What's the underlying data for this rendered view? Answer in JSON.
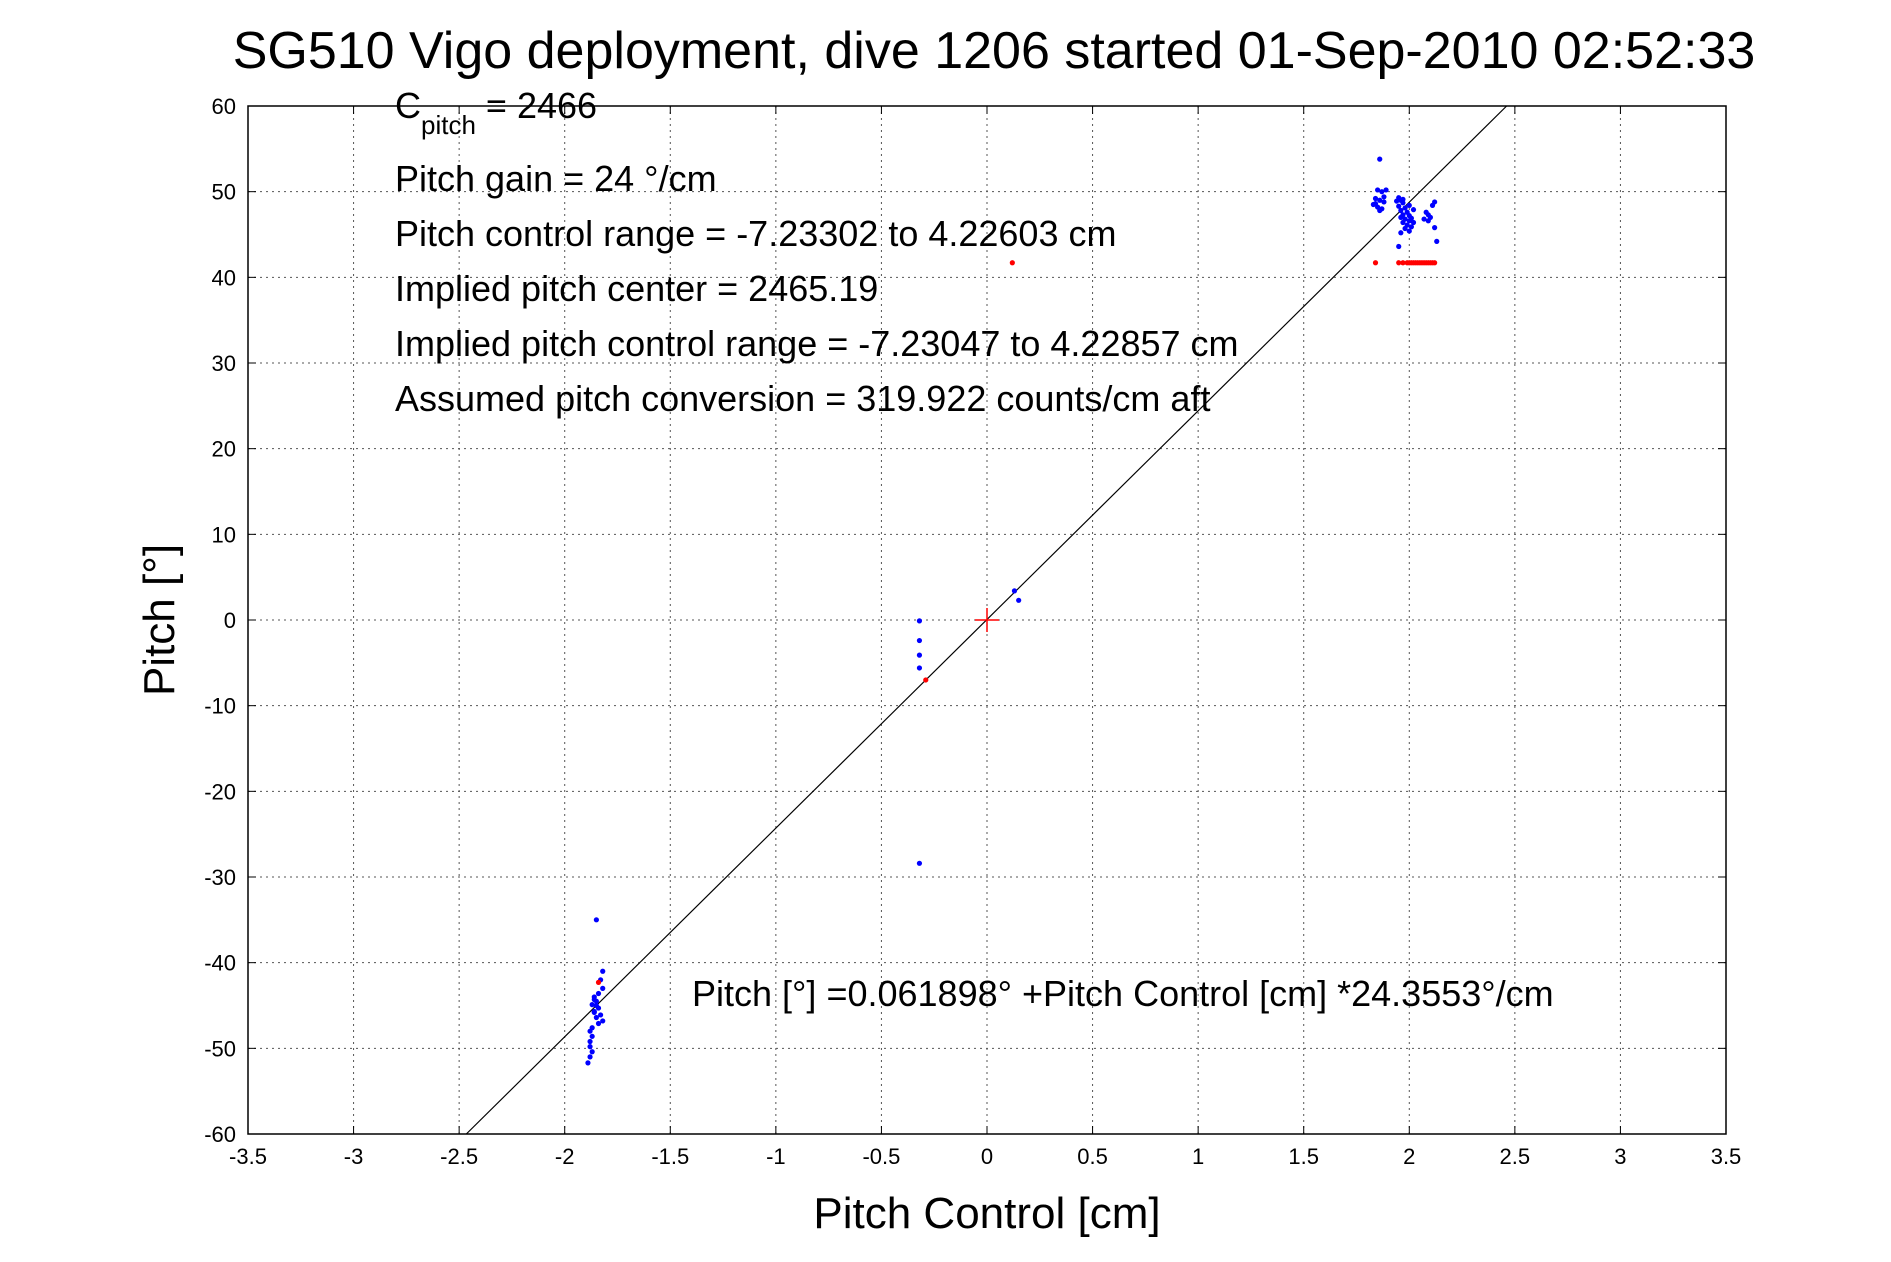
{
  "chart_data": {
    "type": "scatter",
    "title": "SG510 Vigo deployment, dive 1206 started 01-Sep-2010 02:52:33",
    "xlabel": "Pitch Control [cm]",
    "ylabel": "Pitch [°]",
    "xlim": [
      -3.5,
      3.5
    ],
    "ylim": [
      -60,
      60
    ],
    "xticks": [
      -3.5,
      -3,
      -2.5,
      -2,
      -1.5,
      -1,
      -0.5,
      0,
      0.5,
      1,
      1.5,
      2,
      2.5,
      3,
      3.5
    ],
    "yticks": [
      -60,
      -50,
      -40,
      -30,
      -20,
      -10,
      0,
      10,
      20,
      30,
      40,
      50,
      60
    ],
    "xtick_labels": [
      "-3.5",
      "-3",
      "-2.5",
      "-2",
      "-1.5",
      "-1",
      "-0.5",
      "0",
      "0.5",
      "1",
      "1.5",
      "2",
      "2.5",
      "3",
      "3.5"
    ],
    "ytick_labels": [
      "-60",
      "-50",
      "-40",
      "-30",
      "-20",
      "-10",
      "0",
      "10",
      "20",
      "30",
      "40",
      "50",
      "60"
    ],
    "grid": true,
    "annotations": {
      "c_pitch_main": "C",
      "c_pitch_sub": "pitch",
      "c_pitch_value": " = 2466",
      "pitch_gain": "Pitch gain = 24 °/cm",
      "control_range": "Pitch control range = -7.23302 to 4.22603 cm",
      "implied_center": "Implied pitch center = 2465.19",
      "implied_range": "Implied pitch control range = -7.23047 to 4.22857 cm",
      "assumed_conversion": "Assumed pitch conversion = 319.922 counts/cm aft",
      "fit_equation": "Pitch [°] =0.061898° +Pitch Control [cm] *24.3553°/cm"
    },
    "fit_line": {
      "intercept": 0.061898,
      "slope": 24.3553,
      "color": "#000000"
    },
    "center_marker": {
      "x": 0,
      "y": 0,
      "color": "#ff0000"
    },
    "series": [
      {
        "color": "#0000ff",
        "points": [
          [
            1.86,
            53.8
          ],
          [
            1.85,
            50.2
          ],
          [
            1.87,
            50.0
          ],
          [
            1.89,
            50.2
          ],
          [
            1.84,
            49.2
          ],
          [
            1.86,
            49.0
          ],
          [
            1.88,
            48.8
          ],
          [
            1.83,
            48.5
          ],
          [
            1.85,
            48.2
          ],
          [
            1.87,
            48.0
          ],
          [
            1.86,
            47.8
          ],
          [
            1.84,
            48.6
          ],
          [
            1.88,
            49.4
          ],
          [
            1.95,
            49.3
          ],
          [
            1.96,
            49.0
          ],
          [
            1.97,
            48.7
          ],
          [
            1.95,
            48.3
          ],
          [
            1.98,
            48.1
          ],
          [
            1.96,
            47.8
          ],
          [
            1.99,
            47.6
          ],
          [
            1.97,
            47.3
          ],
          [
            2.0,
            47.2
          ],
          [
            1.96,
            47.0
          ],
          [
            1.98,
            46.8
          ],
          [
            2.0,
            46.6
          ],
          [
            1.97,
            46.4
          ],
          [
            1.99,
            46.1
          ],
          [
            2.01,
            45.9
          ],
          [
            1.98,
            45.7
          ],
          [
            2.0,
            45.4
          ],
          [
            1.96,
            45.2
          ],
          [
            1.95,
            43.6
          ],
          [
            2.0,
            48.4
          ],
          [
            2.02,
            47.9
          ],
          [
            1.94,
            48.9
          ],
          [
            1.97,
            49.1
          ],
          [
            2.01,
            46.9
          ],
          [
            2.02,
            46.4
          ],
          [
            2.08,
            47.6
          ],
          [
            2.09,
            47.3
          ],
          [
            2.1,
            47.0
          ],
          [
            2.07,
            46.8
          ],
          [
            2.09,
            46.6
          ],
          [
            2.12,
            48.8
          ],
          [
            2.11,
            48.4
          ],
          [
            2.12,
            45.8
          ],
          [
            2.13,
            44.2
          ],
          [
            0.13,
            3.4
          ],
          [
            0.15,
            2.3
          ],
          [
            -0.32,
            -0.1
          ],
          [
            -0.32,
            -2.4
          ],
          [
            -0.32,
            -4.1
          ],
          [
            -0.32,
            -5.6
          ],
          [
            -0.32,
            -28.4
          ],
          [
            -1.85,
            -35.0
          ],
          [
            -1.82,
            -41.0
          ],
          [
            -1.83,
            -42.0
          ],
          [
            -1.82,
            -43.0
          ],
          [
            -1.84,
            -43.6
          ],
          [
            -1.86,
            -44.0
          ],
          [
            -1.85,
            -44.5
          ],
          [
            -1.87,
            -44.9
          ],
          [
            -1.84,
            -45.3
          ],
          [
            -1.86,
            -45.7
          ],
          [
            -1.83,
            -46.1
          ],
          [
            -1.85,
            -46.4
          ],
          [
            -1.82,
            -46.8
          ],
          [
            -1.84,
            -47.1
          ],
          [
            -1.87,
            -47.6
          ],
          [
            -1.88,
            -48.0
          ],
          [
            -1.87,
            -48.6
          ],
          [
            -1.88,
            -49.2
          ],
          [
            -1.88,
            -49.8
          ],
          [
            -1.87,
            -50.4
          ],
          [
            -1.88,
            -51.0
          ],
          [
            -1.89,
            -51.7
          ],
          [
            -1.86,
            -44.3
          ],
          [
            -1.85,
            -45.0
          ],
          [
            -1.86,
            -45.8
          ]
        ]
      },
      {
        "color": "#ff0000",
        "points": [
          [
            0.12,
            41.7
          ],
          [
            -0.29,
            -7.0
          ],
          [
            -1.84,
            -42.3
          ],
          [
            1.84,
            41.7
          ],
          [
            1.95,
            41.7
          ],
          [
            1.97,
            41.7
          ],
          [
            1.99,
            41.7
          ],
          [
            2.0,
            41.7
          ],
          [
            2.01,
            41.7
          ],
          [
            2.02,
            41.7
          ],
          [
            2.03,
            41.7
          ],
          [
            2.04,
            41.7
          ],
          [
            2.05,
            41.7
          ],
          [
            2.06,
            41.7
          ],
          [
            2.07,
            41.7
          ],
          [
            2.08,
            41.7
          ],
          [
            2.09,
            41.7
          ],
          [
            2.1,
            41.7
          ],
          [
            2.11,
            41.7
          ],
          [
            2.12,
            41.7
          ]
        ]
      }
    ]
  }
}
